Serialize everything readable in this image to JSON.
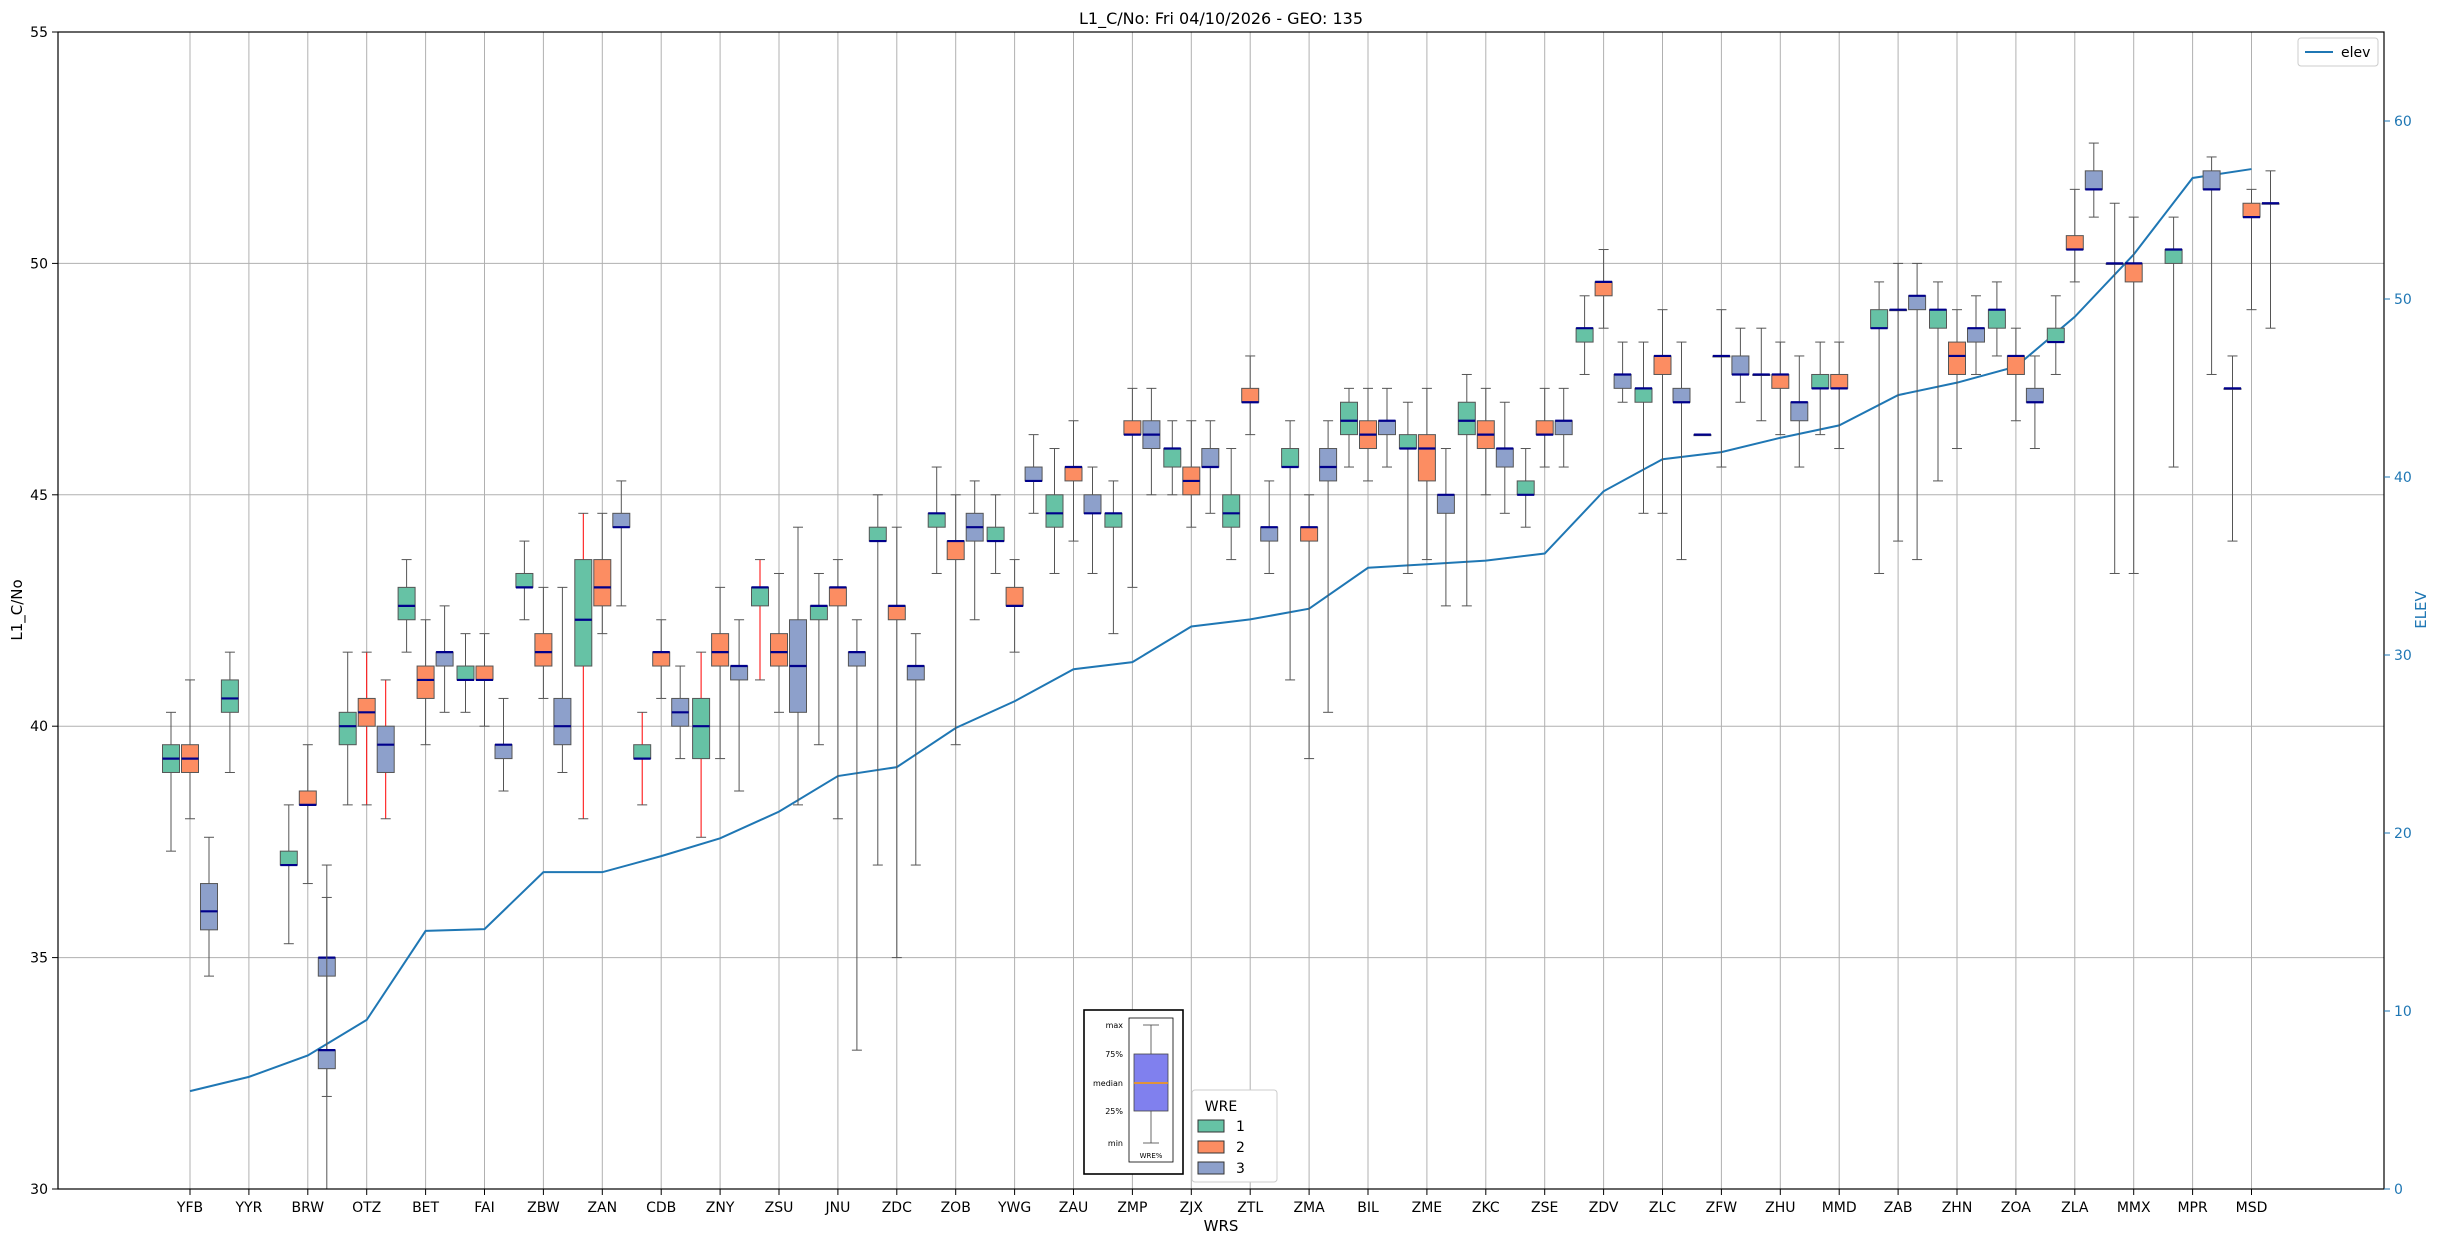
{
  "chart_data": {
    "type": "box",
    "title": "L1_C/No: Fri 04/10/2026 - GEO: 135",
    "xlabel": "WRS",
    "ylabel": "L1_C/No",
    "y2label": "ELEV",
    "ylim": [
      30,
      55
    ],
    "y2lim": [
      0,
      65
    ],
    "yticks": [
      30,
      35,
      40,
      45,
      50,
      55
    ],
    "y2ticks": [
      0,
      10,
      20,
      30,
      40,
      50,
      60
    ],
    "grid": true,
    "categories": [
      "YFB",
      "YYR",
      "BRW",
      "OTZ",
      "BET",
      "FAI",
      "ZBW",
      "ZAN",
      "CDB",
      "ZNY",
      "ZSU",
      "JNU",
      "ZDC",
      "ZOB",
      "YWG",
      "ZAU",
      "ZMP",
      "ZJX",
      "ZTL",
      "ZMA",
      "BIL",
      "ZME",
      "ZKC",
      "ZSE",
      "ZDV",
      "ZLC",
      "ZFW",
      "ZHU",
      "MMD",
      "ZAB",
      "ZHN",
      "ZOA",
      "ZLA",
      "MMX",
      "MPR",
      "MSD"
    ],
    "series": [
      {
        "name": "1",
        "color": "#66c2a5"
      },
      {
        "name": "2",
        "color": "#fc8d62"
      },
      {
        "name": "3",
        "color": "#8da0cb"
      }
    ],
    "boxes": [
      {
        "site": "YFB",
        "wre": "1",
        "min": 37.3,
        "q1": 39.0,
        "median": 39.3,
        "q3": 39.6,
        "max": 40.3
      },
      {
        "site": "YFB",
        "wre": "2",
        "min": 38.0,
        "q1": 39.0,
        "median": 39.3,
        "q3": 39.6,
        "max": 41.0
      },
      {
        "site": "YFB",
        "wre": "3",
        "min": 34.6,
        "q1": 35.6,
        "median": 36.0,
        "q3": 36.6,
        "max": 37.6
      },
      {
        "site": "YYR",
        "wre": "1",
        "min": 39.0,
        "q1": 40.3,
        "median": 40.6,
        "q3": 41.0,
        "max": 41.6
      },
      {
        "site": "BRW",
        "wre": "1",
        "min": 35.3,
        "q1": 37.0,
        "median": 37.0,
        "q3": 37.3,
        "max": 38.3
      },
      {
        "site": "BRW",
        "wre": "2",
        "min": 36.6,
        "q1": 38.3,
        "median": 38.3,
        "q3": 38.6,
        "max": 39.6
      },
      {
        "site": "BRW",
        "wre": "3",
        "min": 32.0,
        "q1": 34.6,
        "median": 35.0,
        "q3": 35.0,
        "max": 36.3
      },
      {
        "site": "BRW",
        "wre": "3b",
        "min": 30.0,
        "q1": 32.6,
        "median": 33.0,
        "q3": 33.0,
        "max": 37.0
      },
      {
        "site": "OTZ",
        "wre": "1",
        "min": 38.3,
        "q1": 39.6,
        "median": 40.0,
        "q3": 40.3,
        "max": 41.6
      },
      {
        "site": "OTZ",
        "wre": "2",
        "min": 38.3,
        "q1": 40.0,
        "median": 40.3,
        "q3": 40.6,
        "max": 41.6,
        "wcolor": "#ff0000"
      },
      {
        "site": "OTZ",
        "wre": "3",
        "min": 38.0,
        "q1": 39.0,
        "median": 39.6,
        "q3": 40.0,
        "max": 41.0,
        "wcolor": "#ff0000"
      },
      {
        "site": "BET",
        "wre": "1",
        "min": 41.6,
        "q1": 42.3,
        "median": 42.6,
        "q3": 43.0,
        "max": 43.6
      },
      {
        "site": "BET",
        "wre": "2",
        "min": 39.6,
        "q1": 40.6,
        "median": 41.0,
        "q3": 41.3,
        "max": 42.3
      },
      {
        "site": "BET",
        "wre": "3",
        "min": 40.3,
        "q1": 41.3,
        "median": 41.6,
        "q3": 41.6,
        "max": 42.6
      },
      {
        "site": "FAI",
        "wre": "1",
        "min": 40.3,
        "q1": 41.0,
        "median": 41.0,
        "q3": 41.3,
        "max": 42.0
      },
      {
        "site": "FAI",
        "wre": "2",
        "min": 40.0,
        "q1": 41.0,
        "median": 41.0,
        "q3": 41.3,
        "max": 42.0
      },
      {
        "site": "FAI",
        "wre": "3",
        "min": 38.6,
        "q1": 39.3,
        "median": 39.6,
        "q3": 39.6,
        "max": 40.6
      },
      {
        "site": "ZBW",
        "wre": "1",
        "min": 42.3,
        "q1": 43.0,
        "median": 43.0,
        "q3": 43.3,
        "max": 44.0
      },
      {
        "site": "ZBW",
        "wre": "2",
        "min": 40.6,
        "q1": 41.3,
        "median": 41.6,
        "q3": 42.0,
        "max": 43.0
      },
      {
        "site": "ZBW",
        "wre": "3",
        "min": 39.0,
        "q1": 39.6,
        "median": 40.0,
        "q3": 40.6,
        "max": 43.0
      },
      {
        "site": "ZAN",
        "wre": "1",
        "min": 38.0,
        "q1": 41.3,
        "median": 42.3,
        "q3": 43.6,
        "max": 44.6,
        "wcolor": "#ff0000"
      },
      {
        "site": "ZAN",
        "wre": "2",
        "min": 42.0,
        "q1": 42.6,
        "median": 43.0,
        "q3": 43.6,
        "max": 44.6
      },
      {
        "site": "ZAN",
        "wre": "3",
        "min": 42.6,
        "q1": 44.3,
        "median": 44.3,
        "q3": 44.6,
        "max": 45.3
      },
      {
        "site": "CDB",
        "wre": "1",
        "min": 38.3,
        "q1": 39.3,
        "median": 39.3,
        "q3": 39.6,
        "max": 40.3,
        "wcolor": "#ff0000"
      },
      {
        "site": "CDB",
        "wre": "2",
        "min": 40.6,
        "q1": 41.3,
        "median": 41.6,
        "q3": 41.6,
        "max": 42.3
      },
      {
        "site": "CDB",
        "wre": "3",
        "min": 39.3,
        "q1": 40.0,
        "median": 40.3,
        "q3": 40.6,
        "max": 41.3
      },
      {
        "site": "ZNY",
        "wre": "1",
        "min": 37.6,
        "q1": 39.3,
        "median": 40.0,
        "q3": 40.6,
        "max": 41.6,
        "wcolor": "#ff0000"
      },
      {
        "site": "ZNY",
        "wre": "2",
        "min": 39.3,
        "q1": 41.3,
        "median": 41.6,
        "q3": 42.0,
        "max": 43.0
      },
      {
        "site": "ZNY",
        "wre": "3",
        "min": 38.6,
        "q1": 41.0,
        "median": 41.3,
        "q3": 41.3,
        "max": 42.3
      },
      {
        "site": "ZSU",
        "wre": "1",
        "min": 41.0,
        "q1": 42.6,
        "median": 43.0,
        "q3": 43.0,
        "max": 43.6,
        "wcolor": "#ff0000"
      },
      {
        "site": "ZSU",
        "wre": "2",
        "min": 40.3,
        "q1": 41.3,
        "median": 41.6,
        "q3": 42.0,
        "max": 43.3
      },
      {
        "site": "ZSU",
        "wre": "3",
        "min": 38.3,
        "q1": 40.3,
        "median": 41.3,
        "q3": 42.3,
        "max": 44.3
      },
      {
        "site": "JNU",
        "wre": "1",
        "min": 39.6,
        "q1": 42.3,
        "median": 42.6,
        "q3": 42.6,
        "max": 43.3
      },
      {
        "site": "JNU",
        "wre": "2",
        "min": 38.0,
        "q1": 42.6,
        "median": 43.0,
        "q3": 43.0,
        "max": 43.6
      },
      {
        "site": "JNU",
        "wre": "3",
        "min": 33.0,
        "q1": 41.3,
        "median": 41.6,
        "q3": 41.6,
        "max": 42.3
      },
      {
        "site": "ZDC",
        "wre": "1",
        "min": 37.0,
        "q1": 44.0,
        "median": 44.0,
        "q3": 44.3,
        "max": 45.0
      },
      {
        "site": "ZDC",
        "wre": "2",
        "min": 35.0,
        "q1": 42.3,
        "median": 42.6,
        "q3": 42.6,
        "max": 44.3
      },
      {
        "site": "ZDC",
        "wre": "3",
        "min": 37.0,
        "q1": 41.0,
        "median": 41.3,
        "q3": 41.3,
        "max": 42.0
      },
      {
        "site": "ZOB",
        "wre": "1",
        "min": 43.3,
        "q1": 44.3,
        "median": 44.6,
        "q3": 44.6,
        "max": 45.6
      },
      {
        "site": "ZOB",
        "wre": "2",
        "min": 39.6,
        "q1": 43.6,
        "median": 44.0,
        "q3": 44.0,
        "max": 45.0
      },
      {
        "site": "ZOB",
        "wre": "3",
        "min": 42.3,
        "q1": 44.0,
        "median": 44.3,
        "q3": 44.6,
        "max": 45.3
      },
      {
        "site": "YWG",
        "wre": "1",
        "min": 43.3,
        "q1": 44.0,
        "median": 44.0,
        "q3": 44.3,
        "max": 45.0
      },
      {
        "site": "YWG",
        "wre": "2",
        "min": 41.6,
        "q1": 42.6,
        "median": 42.6,
        "q3": 43.0,
        "max": 43.6
      },
      {
        "site": "YWG",
        "wre": "3",
        "min": 44.6,
        "q1": 45.3,
        "median": 45.3,
        "q3": 45.6,
        "max": 46.3
      },
      {
        "site": "ZAU",
        "wre": "1",
        "min": 43.3,
        "q1": 44.3,
        "median": 44.6,
        "q3": 45.0,
        "max": 46.0
      },
      {
        "site": "ZAU",
        "wre": "2",
        "min": 44.0,
        "q1": 45.3,
        "median": 45.6,
        "q3": 45.6,
        "max": 46.6
      },
      {
        "site": "ZAU",
        "wre": "3",
        "min": 43.3,
        "q1": 44.6,
        "median": 44.6,
        "q3": 45.0,
        "max": 45.6
      },
      {
        "site": "ZMP",
        "wre": "1",
        "min": 42.0,
        "q1": 44.3,
        "median": 44.6,
        "q3": 44.6,
        "max": 45.3
      },
      {
        "site": "ZMP",
        "wre": "2",
        "min": 43.0,
        "q1": 46.3,
        "median": 46.3,
        "q3": 46.6,
        "max": 47.3
      },
      {
        "site": "ZMP",
        "wre": "3",
        "min": 45.0,
        "q1": 46.0,
        "median": 46.3,
        "q3": 46.6,
        "max": 47.3
      },
      {
        "site": "ZJX",
        "wre": "1",
        "min": 45.0,
        "q1": 45.6,
        "median": 46.0,
        "q3": 46.0,
        "max": 46.6
      },
      {
        "site": "ZJX",
        "wre": "2",
        "min": 44.3,
        "q1": 45.0,
        "median": 45.3,
        "q3": 45.6,
        "max": 46.6
      },
      {
        "site": "ZJX",
        "wre": "3",
        "min": 44.6,
        "q1": 45.6,
        "median": 45.6,
        "q3": 46.0,
        "max": 46.6
      },
      {
        "site": "ZTL",
        "wre": "1",
        "min": 43.6,
        "q1": 44.3,
        "median": 44.6,
        "q3": 45.0,
        "max": 46.0
      },
      {
        "site": "ZTL",
        "wre": "2",
        "min": 46.3,
        "q1": 47.0,
        "median": 47.0,
        "q3": 47.3,
        "max": 48.0
      },
      {
        "site": "ZTL",
        "wre": "3",
        "min": 43.3,
        "q1": 44.0,
        "median": 44.3,
        "q3": 44.3,
        "max": 45.3
      },
      {
        "site": "ZMA",
        "wre": "1",
        "min": 41.0,
        "q1": 45.6,
        "median": 45.6,
        "q3": 46.0,
        "max": 46.6
      },
      {
        "site": "ZMA",
        "wre": "2",
        "min": 39.3,
        "q1": 44.0,
        "median": 44.3,
        "q3": 44.3,
        "max": 45.0
      },
      {
        "site": "ZMA",
        "wre": "3",
        "min": 40.3,
        "q1": 45.3,
        "median": 45.6,
        "q3": 46.0,
        "max": 46.6
      },
      {
        "site": "BIL",
        "wre": "1",
        "min": 45.6,
        "q1": 46.3,
        "median": 46.6,
        "q3": 47.0,
        "max": 47.3
      },
      {
        "site": "BIL",
        "wre": "2",
        "min": 45.3,
        "q1": 46.0,
        "median": 46.3,
        "q3": 46.6,
        "max": 47.3
      },
      {
        "site": "BIL",
        "wre": "3",
        "min": 45.6,
        "q1": 46.3,
        "median": 46.6,
        "q3": 46.6,
        "max": 47.3
      },
      {
        "site": "ZME",
        "wre": "1",
        "min": 43.3,
        "q1": 46.0,
        "median": 46.0,
        "q3": 46.3,
        "max": 47.0
      },
      {
        "site": "ZME",
        "wre": "2",
        "min": 43.6,
        "q1": 45.3,
        "median": 46.0,
        "q3": 46.3,
        "max": 47.3
      },
      {
        "site": "ZME",
        "wre": "3",
        "min": 42.6,
        "q1": 44.6,
        "median": 45.0,
        "q3": 45.0,
        "max": 46.0
      },
      {
        "site": "ZKC",
        "wre": "1",
        "min": 42.6,
        "q1": 46.3,
        "median": 46.6,
        "q3": 47.0,
        "max": 47.6
      },
      {
        "site": "ZKC",
        "wre": "2",
        "min": 45.0,
        "q1": 46.0,
        "median": 46.3,
        "q3": 46.6,
        "max": 47.3
      },
      {
        "site": "ZKC",
        "wre": "3",
        "min": 44.6,
        "q1": 45.6,
        "median": 46.0,
        "q3": 46.0,
        "max": 47.0
      },
      {
        "site": "ZSE",
        "wre": "1",
        "min": 44.3,
        "q1": 45.0,
        "median": 45.0,
        "q3": 45.3,
        "max": 46.0
      },
      {
        "site": "ZSE",
        "wre": "2",
        "min": 45.6,
        "q1": 46.3,
        "median": 46.3,
        "q3": 46.6,
        "max": 47.3
      },
      {
        "site": "ZSE",
        "wre": "3",
        "min": 45.6,
        "q1": 46.3,
        "median": 46.6,
        "q3": 46.6,
        "max": 47.3
      },
      {
        "site": "ZDV",
        "wre": "1",
        "min": 47.6,
        "q1": 48.3,
        "median": 48.6,
        "q3": 48.6,
        "max": 49.3
      },
      {
        "site": "ZDV",
        "wre": "2",
        "min": 48.6,
        "q1": 49.3,
        "median": 49.6,
        "q3": 49.6,
        "max": 50.3
      },
      {
        "site": "ZDV",
        "wre": "3",
        "min": 47.0,
        "q1": 47.3,
        "median": 47.6,
        "q3": 47.6,
        "max": 48.3
      },
      {
        "site": "ZLC",
        "wre": "1",
        "min": 44.6,
        "q1": 47.0,
        "median": 47.3,
        "q3": 47.3,
        "max": 48.3
      },
      {
        "site": "ZLC",
        "wre": "2",
        "min": 44.6,
        "q1": 47.6,
        "median": 48.0,
        "q3": 48.0,
        "max": 49.0
      },
      {
        "site": "ZLC",
        "wre": "3",
        "min": 43.6,
        "q1": 47.0,
        "median": 47.0,
        "q3": 47.3,
        "max": 48.3
      },
      {
        "site": "ZFW",
        "wre": "1",
        "min": 46.3,
        "q1": 46.3,
        "median": 46.3,
        "q3": 46.3,
        "max": 46.3
      },
      {
        "site": "ZFW",
        "wre": "2",
        "min": 45.6,
        "q1": 48.0,
        "median": 48.0,
        "q3": 48.0,
        "max": 49.0
      },
      {
        "site": "ZFW",
        "wre": "3",
        "min": 47.0,
        "q1": 47.6,
        "median": 47.6,
        "q3": 48.0,
        "max": 48.6
      },
      {
        "site": "ZHU",
        "wre": "1",
        "min": 46.6,
        "q1": 47.6,
        "median": 47.6,
        "q3": 47.6,
        "max": 48.6
      },
      {
        "site": "ZHU",
        "wre": "2",
        "min": 46.3,
        "q1": 47.3,
        "median": 47.6,
        "q3": 47.6,
        "max": 48.3
      },
      {
        "site": "ZHU",
        "wre": "3",
        "min": 45.6,
        "q1": 46.6,
        "median": 47.0,
        "q3": 47.0,
        "max": 48.0
      },
      {
        "site": "MMD",
        "wre": "1",
        "min": 46.3,
        "q1": 47.3,
        "median": 47.3,
        "q3": 47.6,
        "max": 48.3
      },
      {
        "site": "MMD",
        "wre": "2",
        "min": 46.0,
        "q1": 47.3,
        "median": 47.3,
        "q3": 47.6,
        "max": 48.3
      },
      {
        "site": "ZAB",
        "wre": "1",
        "min": 43.3,
        "q1": 48.6,
        "median": 48.6,
        "q3": 49.0,
        "max": 49.6
      },
      {
        "site": "ZAB",
        "wre": "2",
        "min": 44.0,
        "q1": 49.0,
        "median": 49.0,
        "q3": 49.0,
        "max": 50.0
      },
      {
        "site": "ZAB",
        "wre": "3",
        "min": 43.6,
        "q1": 49.0,
        "median": 49.3,
        "q3": 49.3,
        "max": 50.0
      },
      {
        "site": "ZHN",
        "wre": "1",
        "min": 45.3,
        "q1": 48.6,
        "median": 49.0,
        "q3": 49.0,
        "max": 49.6
      },
      {
        "site": "ZHN",
        "wre": "2",
        "min": 46.0,
        "q1": 47.6,
        "median": 48.0,
        "q3": 48.3,
        "max": 49.0
      },
      {
        "site": "ZHN",
        "wre": "3",
        "min": 47.6,
        "q1": 48.3,
        "median": 48.6,
        "q3": 48.6,
        "max": 49.3
      },
      {
        "site": "ZOA",
        "wre": "1",
        "min": 48.0,
        "q1": 48.6,
        "median": 49.0,
        "q3": 49.0,
        "max": 49.6
      },
      {
        "site": "ZOA",
        "wre": "2",
        "min": 46.6,
        "q1": 47.6,
        "median": 48.0,
        "q3": 48.0,
        "max": 48.6
      },
      {
        "site": "ZOA",
        "wre": "3",
        "min": 46.0,
        "q1": 47.0,
        "median": 47.0,
        "q3": 47.3,
        "max": 48.0
      },
      {
        "site": "ZLA",
        "wre": "1",
        "min": 47.6,
        "q1": 48.3,
        "median": 48.3,
        "q3": 48.6,
        "max": 49.3
      },
      {
        "site": "ZLA",
        "wre": "2",
        "min": 49.6,
        "q1": 50.3,
        "median": 50.3,
        "q3": 50.6,
        "max": 51.6
      },
      {
        "site": "ZLA",
        "wre": "3",
        "min": 51.0,
        "q1": 51.6,
        "median": 51.6,
        "q3": 52.0,
        "max": 52.6
      },
      {
        "site": "MMX",
        "wre": "1",
        "min": 43.3,
        "q1": 50.0,
        "median": 50.0,
        "q3": 50.0,
        "max": 51.3
      },
      {
        "site": "MMX",
        "wre": "2",
        "min": 43.3,
        "q1": 49.6,
        "median": 50.0,
        "q3": 50.0,
        "max": 51.0
      },
      {
        "site": "MPR",
        "wre": "1",
        "min": 45.6,
        "q1": 50.0,
        "median": 50.3,
        "q3": 50.3,
        "max": 51.0
      },
      {
        "site": "MPR",
        "wre": "3",
        "min": 47.6,
        "q1": 51.6,
        "median": 51.6,
        "q3": 52.0,
        "max": 52.3
      },
      {
        "site": "MSD",
        "wre": "1",
        "min": 44.0,
        "q1": 47.3,
        "median": 47.3,
        "q3": 47.3,
        "max": 48.0
      },
      {
        "site": "MSD",
        "wre": "2",
        "min": 49.0,
        "q1": 51.0,
        "median": 51.0,
        "q3": 51.3,
        "max": 51.6
      },
      {
        "site": "MSD",
        "wre": "3",
        "min": 48.6,
        "q1": 51.3,
        "median": 51.3,
        "q3": 51.3,
        "max": 52.0
      }
    ],
    "elev_line": {
      "name": "elev",
      "color": "#1f77b4",
      "values": [
        5.5,
        6.3,
        7.5,
        9.5,
        14.5,
        14.6,
        17.8,
        17.8,
        18.7,
        19.7,
        21.2,
        23.2,
        23.7,
        25.9,
        27.4,
        29.2,
        29.6,
        31.6,
        32.0,
        32.6,
        34.9,
        35.1,
        35.3,
        35.7,
        39.2,
        41.0,
        41.4,
        42.2,
        42.9,
        44.6,
        45.3,
        46.2,
        49.0,
        52.5,
        56.8,
        57.3
      ]
    },
    "legend_wre": {
      "title": "WRE",
      "entries": [
        "1",
        "2",
        "3"
      ]
    },
    "legend_elev": {
      "entries": [
        "elev"
      ]
    },
    "inset_key": {
      "labels": [
        "max",
        "75%",
        "median",
        "25%",
        "min"
      ],
      "xlabel": "WRE%"
    }
  }
}
